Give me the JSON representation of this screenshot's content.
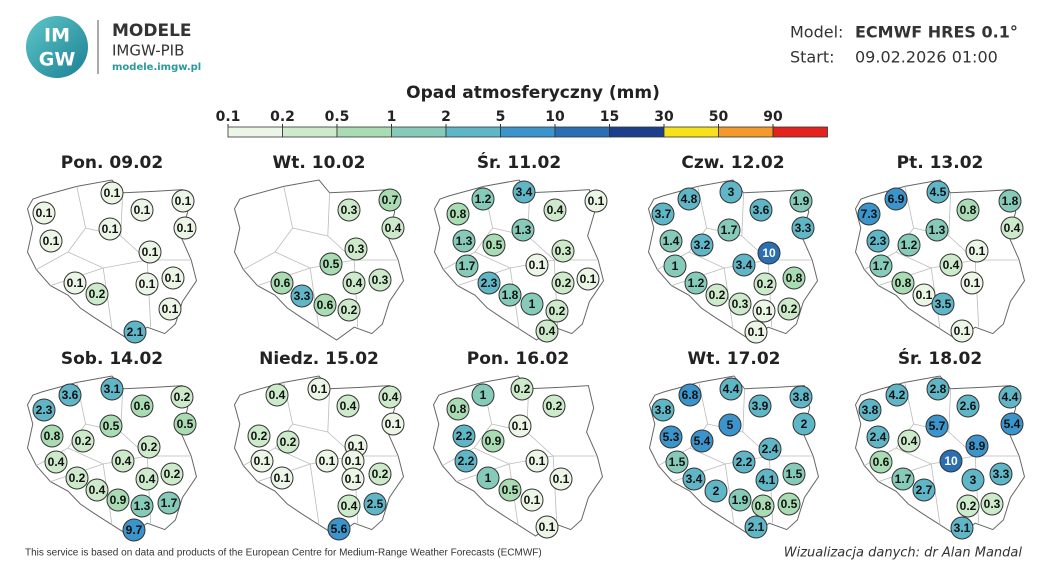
{
  "header": {
    "logo": [
      "IM",
      "GW"
    ],
    "name": "MODELE",
    "org": "IMGW-PIB",
    "url": "modele.imgw.pl"
  },
  "model": {
    "label": "Model:",
    "value": "ECMWF HRES 0.1°"
  },
  "start": {
    "label": "Start:",
    "value": "09.02.2026 01:00"
  },
  "legend": {
    "title": "Opad atmosferyczny (mm)",
    "ticks": [
      0.1,
      0.2,
      0.5,
      1,
      2,
      5,
      10,
      15,
      30,
      50,
      90
    ],
    "colors": [
      "#ebf6e6",
      "#cdeacb",
      "#aadcb4",
      "#86cbb9",
      "#5fb6c7",
      "#3b95cc",
      "#2a6fb3",
      "#1b3f8b",
      "#f7e11b",
      "#f39a2a",
      "#e4231f"
    ]
  },
  "panels": [
    {
      "title": "Pon. 09.02",
      "values": [
        0.1,
        0.1,
        0.1,
        0.1,
        0.1,
        0.1,
        0.1,
        0.1,
        0.1,
        0.2,
        0.1,
        0.1,
        0.1,
        2.1
      ]
    },
    {
      "title": "Wt. 10.02",
      "values": [
        0.3,
        0.7,
        0.4,
        0.3,
        0.5,
        0.6,
        3.3,
        0.4,
        0.3,
        0.6,
        0.2
      ]
    },
    {
      "title": "Śr. 11.02",
      "values": [
        1.2,
        3.4,
        0.1,
        0.8,
        0.4,
        1.3,
        1.3,
        0.5,
        0.3,
        1.7,
        0.1,
        2.3,
        0.2,
        0.1,
        1.8,
        1.0,
        0.2,
        0.4
      ]
    },
    {
      "title": "Czw. 12.02",
      "values": [
        4.8,
        3.0,
        1.9,
        3.7,
        3.6,
        1.7,
        3.3,
        1.4,
        3.2,
        10,
        1.0,
        3.4,
        0.8,
        1.2,
        0.2,
        0.2,
        0.3,
        0.1,
        0.2,
        0.1
      ]
    },
    {
      "title": "Pt. 13.02",
      "values": [
        6.9,
        4.5,
        1.8,
        7.3,
        0.8,
        1.3,
        0.4,
        2.3,
        1.2,
        0.1,
        1.7,
        0.4,
        0.8,
        0.1,
        0.1,
        3.5,
        0.1
      ]
    },
    {
      "title": "Sob. 14.02",
      "values": [
        3.6,
        3.1,
        0.2,
        2.3,
        0.6,
        0.5,
        0.5,
        0.8,
        0.2,
        0.2,
        0.4,
        0.4,
        0.2,
        0.4,
        0.2,
        0.4,
        0.9,
        1.3,
        1.7,
        9.7
      ]
    },
    {
      "title": "Niedz. 15.02",
      "values": [
        0.1,
        0.4,
        0.4,
        0.4,
        0.1,
        0.2,
        0.2,
        0.1,
        0.1,
        0.1,
        0.1,
        0.1,
        0.1,
        0.2,
        0.4,
        2.5,
        5.6
      ]
    },
    {
      "title": "Pon. 16.02",
      "values": [
        1.0,
        0.2,
        0.8,
        0.2,
        0.1,
        2.2,
        0.9,
        2.2,
        0.1,
        1.0,
        0.1,
        0.5,
        0.1,
        0.1
      ]
    },
    {
      "title": "Wt. 17.02",
      "values": [
        6.8,
        4.4,
        3.8,
        3.8,
        3.9,
        5.0,
        2.0,
        5.3,
        5.4,
        2.4,
        1.5,
        2.2,
        3.4,
        4.1,
        1.5,
        2.0,
        1.9,
        0.8,
        0.5,
        2.1
      ]
    },
    {
      "title": "Śr. 18.02",
      "values": [
        4.2,
        2.8,
        4.4,
        3.8,
        5.7,
        2.6,
        5.4,
        2.4,
        0.4,
        8.9,
        10,
        0.6,
        1.7,
        3.0,
        3.3,
        2.7,
        0.2,
        0.3,
        3.1
      ]
    }
  ],
  "footer": {
    "source": "This service is based on data and products of the European Centre for Medium-Range Weather Forecasts (ECMWF)",
    "credit": "Wizualizacja danych: dr Alan Mandal"
  }
}
